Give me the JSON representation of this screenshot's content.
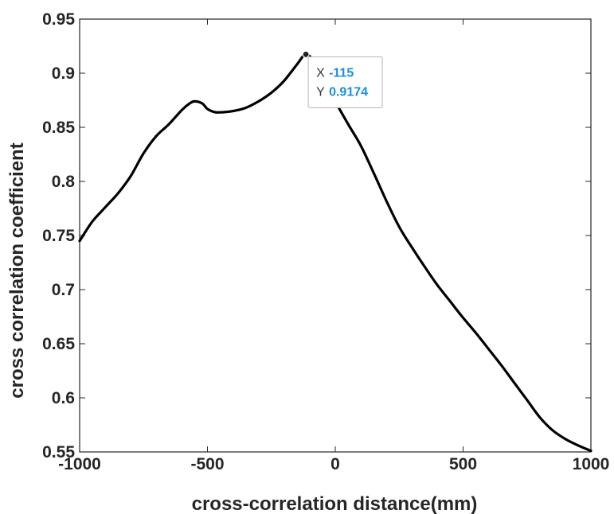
{
  "chart_data": {
    "type": "line",
    "xlabel": "cross-correlation distance(mm)",
    "ylabel": "cross correlation coefficient",
    "xlim": [
      -1000,
      1000
    ],
    "ylim": [
      0.55,
      0.95
    ],
    "xticks": [
      "-1000",
      "-500",
      "0",
      "500",
      "1000"
    ],
    "yticks": [
      "0.55",
      "0.6",
      "0.65",
      "0.7",
      "0.75",
      "0.8",
      "0.85",
      "0.9",
      "0.95"
    ],
    "grid": false,
    "line_color": "#000000",
    "series": [
      {
        "x": [
          -1000,
          -950,
          -900,
          -850,
          -800,
          -750,
          -700,
          -650,
          -600,
          -570,
          -550,
          -520,
          -500,
          -470,
          -440,
          -400,
          -350,
          -300,
          -250,
          -200,
          -150,
          -115,
          -80,
          -50,
          0,
          50,
          100,
          150,
          200,
          250,
          300,
          350,
          400,
          450,
          500,
          550,
          600,
          650,
          700,
          750,
          800,
          850,
          900,
          950,
          1000
        ],
        "y": [
          0.745,
          0.763,
          0.776,
          0.789,
          0.805,
          0.826,
          0.842,
          0.853,
          0.866,
          0.872,
          0.874,
          0.872,
          0.867,
          0.864,
          0.864,
          0.865,
          0.868,
          0.874,
          0.882,
          0.893,
          0.908,
          0.9174,
          0.91,
          0.898,
          0.874,
          0.853,
          0.833,
          0.808,
          0.782,
          0.758,
          0.739,
          0.721,
          0.704,
          0.689,
          0.674,
          0.66,
          0.645,
          0.63,
          0.614,
          0.598,
          0.582,
          0.57,
          0.562,
          0.556,
          0.551
        ]
      }
    ],
    "datatip": {
      "x_label": "X",
      "x_value": "-115",
      "y_label": "Y",
      "y_value": "0.9174",
      "x": -115,
      "y": 0.9174,
      "value_color": "#1a8fd8"
    }
  }
}
